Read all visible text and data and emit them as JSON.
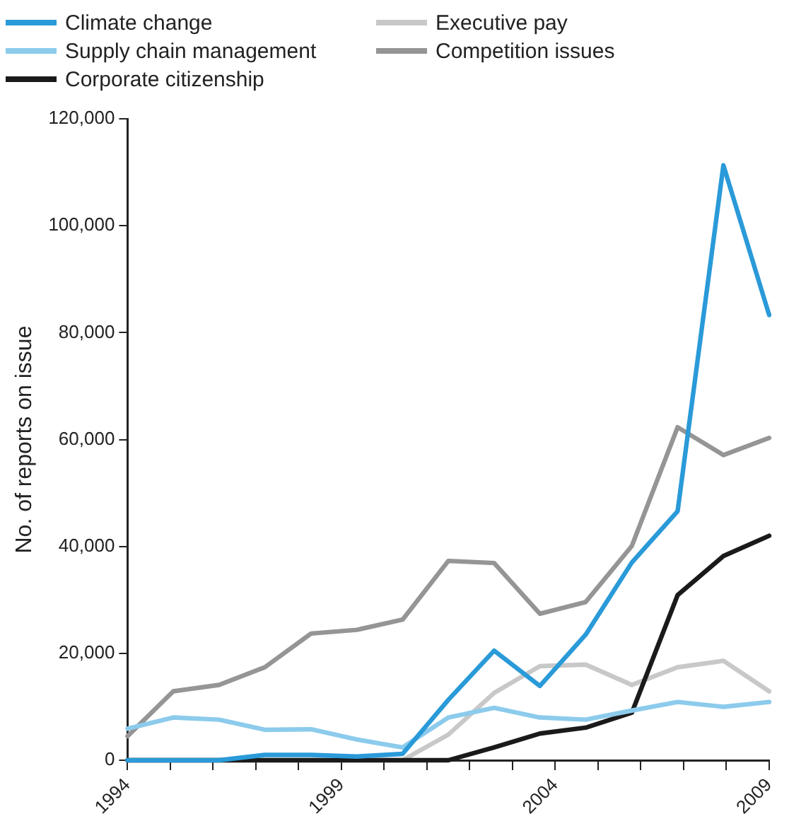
{
  "chart_data": {
    "type": "line",
    "ylabel": "No. of reports on issue",
    "x": [
      1994,
      1995.07,
      1996.14,
      1997.21,
      1998.29,
      1999.36,
      2000.43,
      2001.5,
      2002.57,
      2003.64,
      2004.71,
      2005.79,
      2006.86,
      2007.93,
      2009
    ],
    "series": [
      {
        "name": "Climate change",
        "color": "#2a9ad8",
        "values": [
          0,
          0,
          0,
          1000,
          1000,
          700,
          1200,
          11300,
          20500,
          13900,
          23500,
          37000,
          46600,
          111300,
          83300
        ]
      },
      {
        "name": "Supply chain management",
        "color": "#8ccbec",
        "values": [
          5900,
          8000,
          7600,
          5700,
          5800,
          3900,
          2400,
          8000,
          9800,
          8000,
          7600,
          9300,
          10900,
          10000,
          10900
        ]
      },
      {
        "name": "Corporate citizenship",
        "color": "#1a1a1a",
        "values": [
          0,
          0,
          0,
          0,
          0,
          0,
          0,
          0,
          2400,
          5000,
          6100,
          8900,
          30900,
          38200,
          42000
        ]
      },
      {
        "name": "Executive pay",
        "color": "#c8c8c8",
        "values": [
          0,
          0,
          0,
          0,
          0,
          0,
          0,
          4800,
          12600,
          17600,
          17900,
          14100,
          17400,
          18600,
          12900
        ]
      },
      {
        "name": "Competition issues",
        "color": "#959595",
        "values": [
          4500,
          12900,
          14100,
          17400,
          23700,
          24400,
          26300,
          37300,
          36900,
          27400,
          29600,
          40100,
          62300,
          57100,
          60300
        ]
      }
    ],
    "xlim": [
      1994,
      2009
    ],
    "xticks": [
      1994,
      {
        "value": 1995,
        "label": null
      },
      {
        "value": 1996,
        "label": null
      },
      {
        "value": 1997,
        "label": null
      },
      {
        "value": 1998,
        "label": null
      },
      1999,
      {
        "value": 2000,
        "label": null
      },
      {
        "value": 2001,
        "label": null
      },
      {
        "value": 2002,
        "label": null
      },
      {
        "value": 2003,
        "label": null
      },
      2004,
      {
        "value": 2005,
        "label": null
      },
      {
        "value": 2006,
        "label": null
      },
      {
        "value": 2007,
        "label": null
      },
      {
        "value": 2008,
        "label": null
      },
      2009
    ],
    "ylim": [
      0,
      120000
    ],
    "yticks": [
      {
        "value": 0,
        "label": "0"
      },
      {
        "value": 20000,
        "label": "20,000"
      },
      {
        "value": 40000,
        "label": "40,000"
      },
      {
        "value": 60000,
        "label": "60,000"
      },
      {
        "value": 80000,
        "label": "80,000"
      },
      {
        "value": 100000,
        "label": "100,000"
      },
      {
        "value": 120000,
        "label": "120,000"
      }
    ],
    "grid": false,
    "legend": "top left",
    "marker": "none",
    "line_style": "solid"
  }
}
